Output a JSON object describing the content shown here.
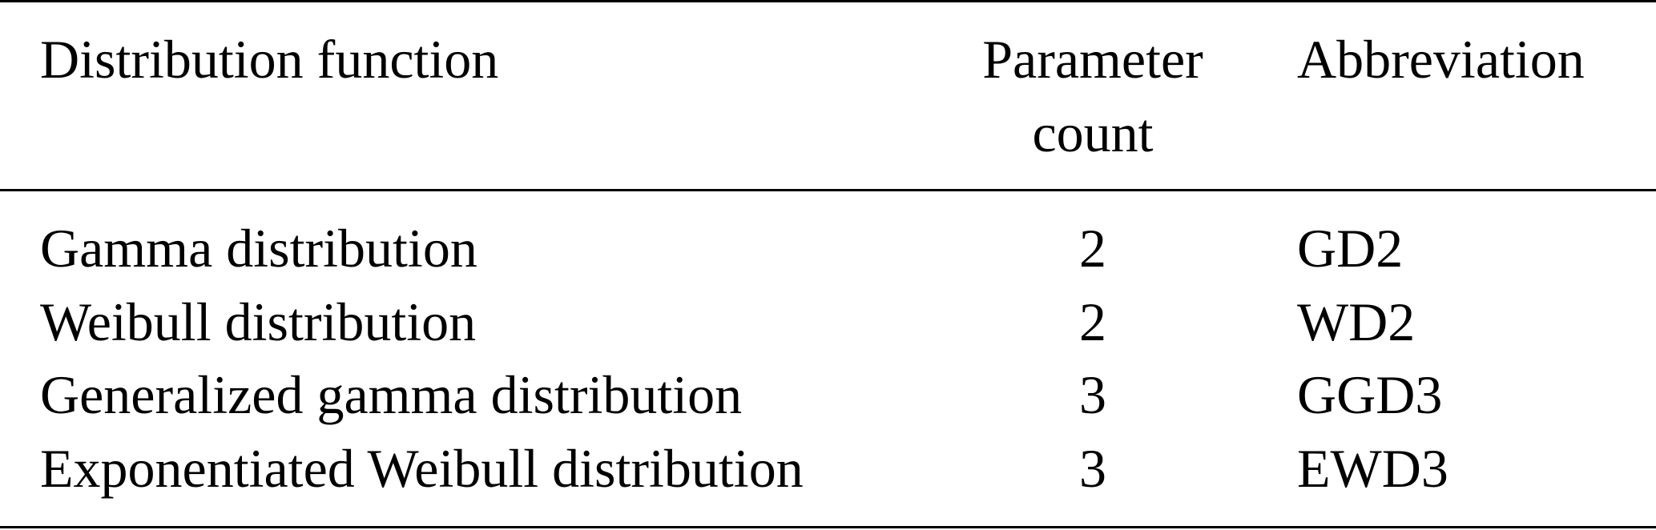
{
  "table": {
    "headers": {
      "col1": "Distribution function",
      "col2_line1": "Parameter",
      "col2_line2": "count",
      "col3": "Abbreviation"
    },
    "rows": [
      {
        "name": "Gamma distribution",
        "count": "2",
        "abbr": "GD2"
      },
      {
        "name": "Weibull distribution",
        "count": "2",
        "abbr": "WD2"
      },
      {
        "name": "Generalized gamma distribution",
        "count": "3",
        "abbr": "GGD3"
      },
      {
        "name": "Exponentiated Weibull distribution",
        "count": "3",
        "abbr": "EWD3"
      }
    ]
  }
}
